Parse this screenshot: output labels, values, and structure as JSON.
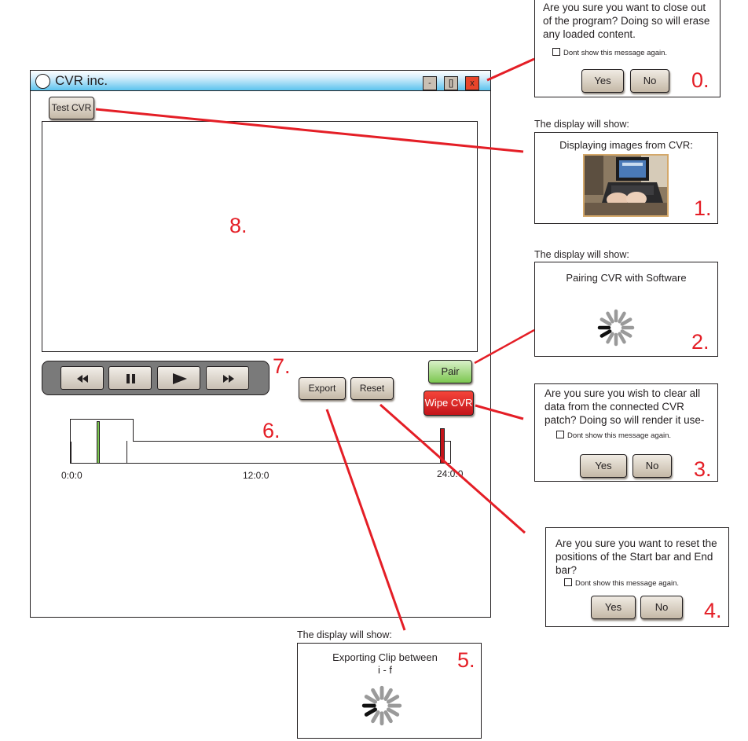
{
  "window": {
    "title": "CVR inc.",
    "minimize_label": "-",
    "maximize_label": "[]",
    "close_label": "x",
    "test_button": "Test CVR"
  },
  "annotations": {
    "n0": "0.",
    "n1": "1.",
    "n2": "2.",
    "n3": "3.",
    "n4": "4.",
    "n5": "5.",
    "n6": "6.",
    "n7": "7.",
    "n8": "8."
  },
  "controls": {
    "rewind_icon": "rewind-icon",
    "pause_icon": "pause-icon",
    "play_icon": "play-icon",
    "fast_forward_icon": "fast-forward-icon",
    "export_label": "Export",
    "reset_label": "Reset",
    "pair_label": "Pair",
    "wipe_label": "Wipe CVR"
  },
  "timeline": {
    "tick_start": "0:0:0",
    "tick_mid": "12:0:0",
    "tick_end": "24:0:0"
  },
  "panels": {
    "close_confirm": {
      "text": "Are you sure you want to close out of the program? Doing so will erase any loaded content.",
      "checkbox": "Dont show this message again.",
      "yes": "Yes",
      "no": "No"
    },
    "display_caption_1": "The display will show:",
    "display_images": {
      "title": "Displaying images from CVR:"
    },
    "display_caption_2": "The display will show:",
    "pairing": {
      "title": "Pairing CVR with Software"
    },
    "wipe_confirm": {
      "text": "Are you sure you wish to clear all data from the connected CVR patch? Doing so will render it use-",
      "checkbox": "Dont show this message again.",
      "yes": "Yes",
      "no": "No"
    },
    "reset_confirm": {
      "text": "Are you sure you want to reset the positions of the Start bar and End bar?",
      "checkbox": "Dont show this message again.",
      "yes": "Yes",
      "no": "No"
    },
    "display_caption_5": "The display will show:",
    "exporting": {
      "title_line1": "Exporting Clip between",
      "title_line2": "i - f"
    }
  },
  "colors": {
    "annotation_red": "#e41e26",
    "title_bar_blue": "#5bc3ee",
    "pair_green": "#7cc750",
    "wipe_red": "#c3141a",
    "button_tan": "#c4b8a6"
  }
}
